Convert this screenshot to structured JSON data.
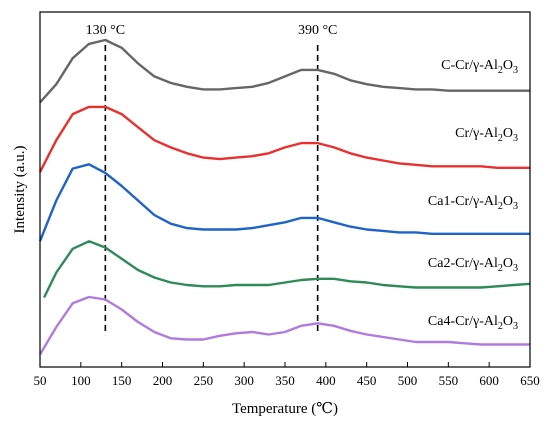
{
  "chart_data": {
    "type": "line",
    "xlabel": "Temperature (℃)",
    "ylabel": "Intensity (a.u.)",
    "xlim": [
      50,
      650
    ],
    "x_ticks": [
      "50",
      "100",
      "150",
      "200",
      "250",
      "300",
      "350",
      "400",
      "450",
      "500",
      "550",
      "600",
      "650"
    ],
    "y_ticks_shown": false,
    "grid": false,
    "annotations": [
      {
        "x": 130,
        "label": "130 °C",
        "style": "dashed"
      },
      {
        "x": 390,
        "label": "390 °C",
        "style": "dashed"
      }
    ],
    "series": [
      {
        "name": "C-Cr/γ-Al2O3",
        "label_main": "C-Cr/γ-Al",
        "label_sub1": "2",
        "label_mid": "O",
        "label_sub2": "3",
        "color": "#666666",
        "x": [
          50,
          70,
          90,
          110,
          130,
          150,
          170,
          190,
          210,
          230,
          250,
          270,
          290,
          310,
          330,
          350,
          370,
          390,
          410,
          430,
          450,
          470,
          490,
          510,
          530,
          550,
          570,
          590,
          610,
          630,
          650
        ],
        "y": [
          0.02,
          0.16,
          0.36,
          0.47,
          0.5,
          0.44,
          0.32,
          0.22,
          0.17,
          0.14,
          0.12,
          0.12,
          0.13,
          0.14,
          0.17,
          0.22,
          0.27,
          0.27,
          0.24,
          0.19,
          0.16,
          0.14,
          0.13,
          0.12,
          0.12,
          0.11,
          0.11,
          0.11,
          0.11,
          0.11,
          0.11
        ]
      },
      {
        "name": "Cr/γ-Al2O3",
        "label_main": "Cr/γ-Al",
        "label_sub1": "2",
        "label_mid": "O",
        "label_sub2": "3",
        "color": "#e8312f",
        "x": [
          50,
          70,
          90,
          110,
          130,
          150,
          170,
          190,
          210,
          230,
          250,
          270,
          290,
          310,
          330,
          350,
          370,
          390,
          410,
          430,
          450,
          470,
          490,
          510,
          530,
          550,
          570,
          590,
          610,
          630,
          650
        ],
        "y": [
          0.02,
          0.24,
          0.42,
          0.47,
          0.47,
          0.42,
          0.33,
          0.24,
          0.19,
          0.15,
          0.12,
          0.11,
          0.12,
          0.13,
          0.15,
          0.19,
          0.22,
          0.22,
          0.19,
          0.15,
          0.12,
          0.1,
          0.08,
          0.07,
          0.06,
          0.06,
          0.06,
          0.06,
          0.05,
          0.05,
          0.05
        ]
      },
      {
        "name": "Ca1-Cr/γ-Al2O3",
        "label_main": "Ca1-Cr/γ-Al",
        "label_sub1": "2",
        "label_mid": "O",
        "label_sub2": "3",
        "color": "#1f63c9",
        "x": [
          50,
          70,
          90,
          110,
          130,
          150,
          170,
          190,
          210,
          230,
          250,
          270,
          290,
          310,
          330,
          350,
          370,
          390,
          410,
          430,
          450,
          470,
          490,
          510,
          530,
          550,
          570,
          590,
          610,
          630,
          650
        ],
        "y": [
          0.02,
          0.3,
          0.52,
          0.55,
          0.49,
          0.4,
          0.3,
          0.2,
          0.14,
          0.11,
          0.1,
          0.1,
          0.1,
          0.11,
          0.13,
          0.15,
          0.18,
          0.18,
          0.15,
          0.12,
          0.1,
          0.09,
          0.08,
          0.08,
          0.07,
          0.07,
          0.07,
          0.07,
          0.07,
          0.07,
          0.07
        ]
      },
      {
        "name": "Ca2-Cr/γ-Al2O3",
        "label_main": "Ca2-Cr/γ-Al",
        "label_sub1": "2",
        "label_mid": "O",
        "label_sub2": "3",
        "color": "#2e8b57",
        "x": [
          55,
          70,
          90,
          110,
          130,
          150,
          170,
          190,
          210,
          230,
          250,
          270,
          290,
          310,
          330,
          350,
          370,
          390,
          410,
          430,
          450,
          470,
          490,
          510,
          530,
          550,
          570,
          590,
          610,
          630,
          650
        ],
        "y": [
          0.02,
          0.22,
          0.41,
          0.47,
          0.42,
          0.33,
          0.24,
          0.18,
          0.14,
          0.12,
          0.11,
          0.11,
          0.12,
          0.12,
          0.12,
          0.14,
          0.16,
          0.17,
          0.17,
          0.15,
          0.14,
          0.12,
          0.11,
          0.1,
          0.1,
          0.1,
          0.1,
          0.1,
          0.11,
          0.12,
          0.13
        ]
      },
      {
        "name": "Ca4-Cr/γ-Al2O3",
        "label_main": "Ca4-Cr/γ-Al",
        "label_sub1": "2",
        "label_mid": "O",
        "label_sub2": "3",
        "color": "#b07ae0",
        "x": [
          50,
          70,
          90,
          110,
          130,
          150,
          170,
          190,
          210,
          230,
          250,
          270,
          290,
          310,
          330,
          350,
          370,
          390,
          410,
          430,
          450,
          470,
          490,
          510,
          530,
          550,
          570,
          590,
          610,
          630,
          650
        ],
        "y": [
          0.02,
          0.24,
          0.43,
          0.48,
          0.46,
          0.38,
          0.28,
          0.2,
          0.15,
          0.14,
          0.14,
          0.17,
          0.19,
          0.2,
          0.18,
          0.2,
          0.25,
          0.27,
          0.25,
          0.21,
          0.18,
          0.16,
          0.14,
          0.12,
          0.12,
          0.12,
          0.11,
          0.1,
          0.1,
          0.1,
          0.1
        ]
      }
    ]
  }
}
